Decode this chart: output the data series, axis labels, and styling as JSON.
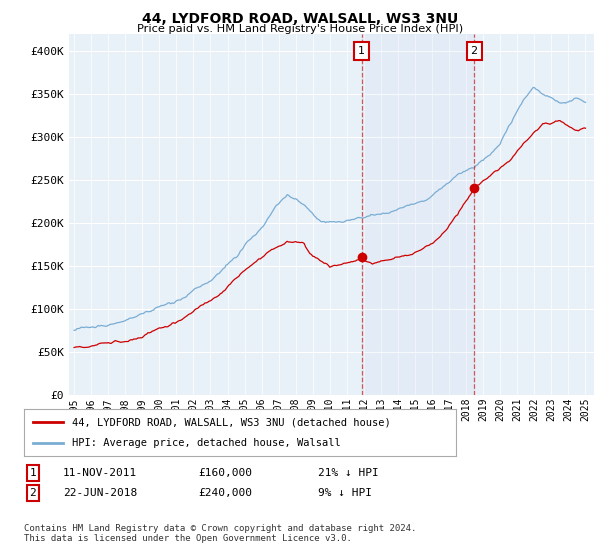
{
  "title": "44, LYDFORD ROAD, WALSALL, WS3 3NU",
  "subtitle": "Price paid vs. HM Land Registry's House Price Index (HPI)",
  "hpi_color": "#7aadd4",
  "price_color": "#cc0000",
  "background_color": "#ffffff",
  "plot_bg_color": "#e8f0f8",
  "legend_line1": "44, LYDFORD ROAD, WALSALL, WS3 3NU (detached house)",
  "legend_line2": "HPI: Average price, detached house, Walsall",
  "annotation1_date": "11-NOV-2011",
  "annotation1_price": "£160,000",
  "annotation1_hpi": "21% ↓ HPI",
  "annotation2_date": "22-JUN-2018",
  "annotation2_price": "£240,000",
  "annotation2_hpi": "9% ↓ HPI",
  "footnote": "Contains HM Land Registry data © Crown copyright and database right 2024.\nThis data is licensed under the Open Government Licence v3.0.",
  "ylim": [
    0,
    420000
  ],
  "yticks": [
    0,
    50000,
    100000,
    150000,
    200000,
    250000,
    300000,
    350000,
    400000
  ],
  "ytick_labels": [
    "£0",
    "£50K",
    "£100K",
    "£150K",
    "£200K",
    "£250K",
    "£300K",
    "£350K",
    "£400K"
  ],
  "sale1_year": 2011.87,
  "sale1_price": 160000,
  "sale2_year": 2018.47,
  "sale2_price": 240000,
  "vline1_year": 2011.87,
  "vline2_year": 2018.47
}
